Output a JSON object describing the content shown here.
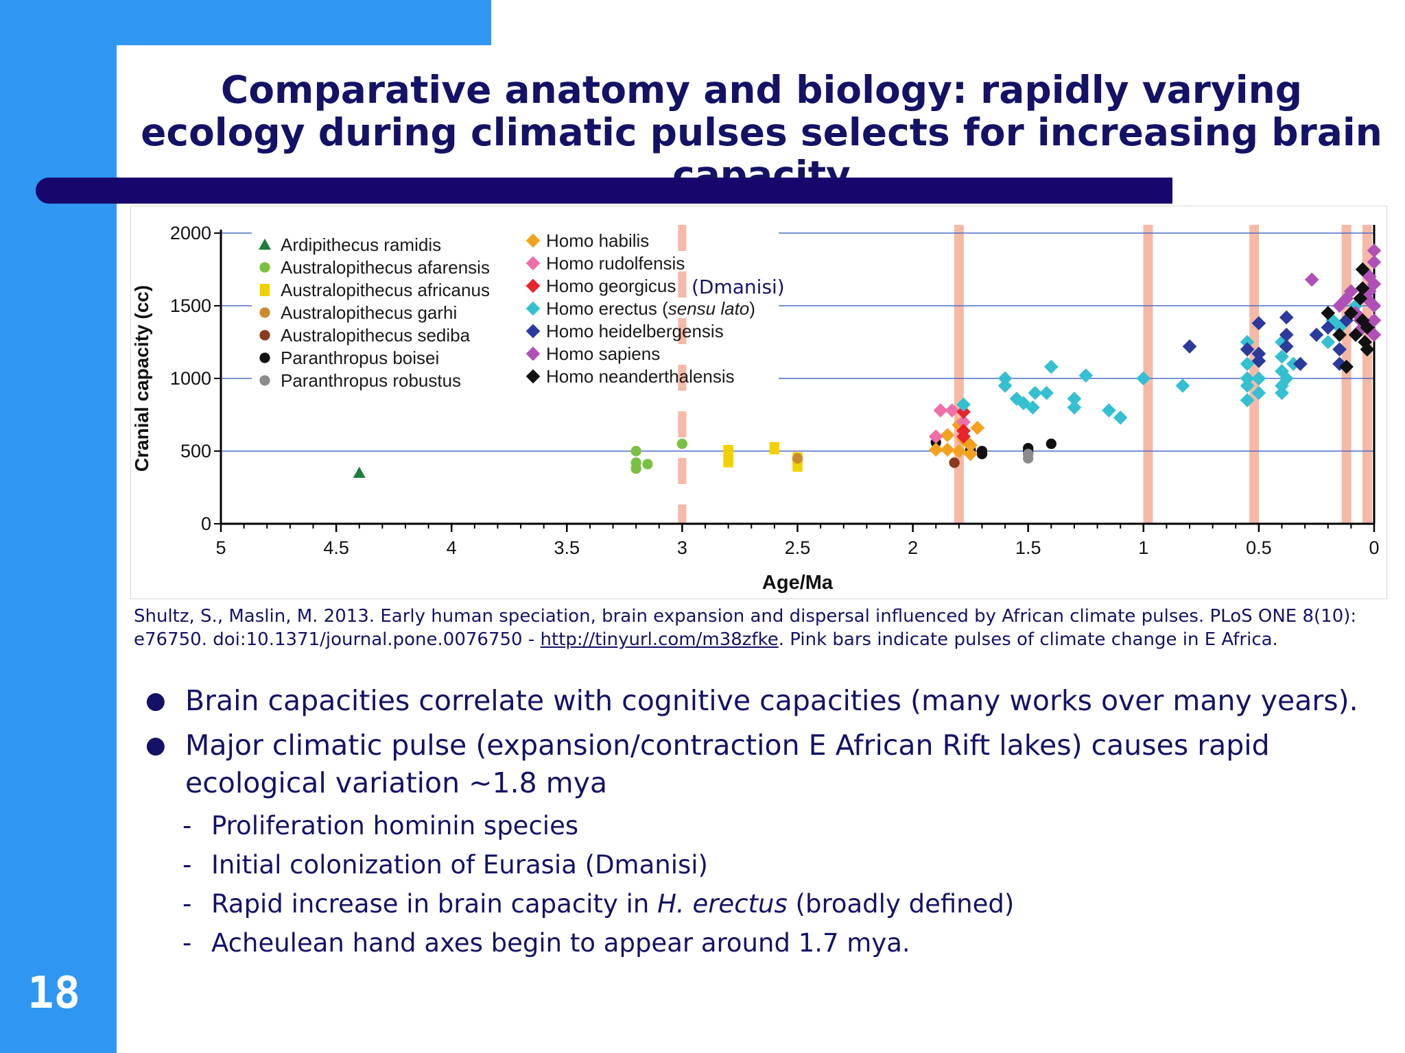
{
  "slide": {
    "title": "Comparative anatomy and biology: rapidly varying ecology during climatic pulses selects for increasing brain capacity",
    "page_number": "18"
  },
  "caption": {
    "text_before_link": "Shultz, S., Maslin, M. 2013. Early human speciation, brain expansion and dispersal influenced by African climate pulses. PLoS ONE 8(10): e76750. doi:10.1371/journal.pone.0076750 - ",
    "link": "http://tinyurl.com/m38zfke",
    "text_after_link": ". Pink bars indicate pulses of climate change in E Africa."
  },
  "bullets": [
    {
      "text": "Brain capacities correlate with cognitive capacities (many works over many years).",
      "sub": []
    },
    {
      "text": "Major climatic pulse (expansion/contraction E African Rift lakes) causes rapid ecological variation ~1.8 mya",
      "sub": [
        {
          "before": "Proliferation hominin species",
          "italic": "",
          "after": ""
        },
        {
          "before": "Initial colonization of Eurasia (Dmanisi)",
          "italic": "",
          "after": ""
        },
        {
          "before": "Rapid increase in brain capacity in ",
          "italic": "H. erectus",
          "after": " (broadly defined)"
        },
        {
          "before": "Acheulean hand axes begin to appear around 1.7 mya.",
          "italic": "",
          "after": ""
        }
      ]
    }
  ],
  "chart_data": {
    "type": "scatter",
    "xlabel": "Age/Ma",
    "ylabel": "Cranial capacity (cc)",
    "xlim": [
      5,
      0
    ],
    "ylim": [
      0,
      2000
    ],
    "x_reversed": true,
    "x_ticks": [
      5,
      4.5,
      4,
      3.5,
      3,
      2.5,
      2,
      1.5,
      1,
      0.5,
      0
    ],
    "y_ticks": [
      0,
      500,
      1000,
      1500,
      2000
    ],
    "grid": "horizontal",
    "legend_position": "top-left",
    "dmanisi_note": "(Dmanisi)",
    "pulse_color": "#f6b9a6",
    "climate_pulses": [
      {
        "age": 3.0,
        "dashed": true
      },
      {
        "age": 1.8,
        "dashed": false
      },
      {
        "age": 0.98,
        "dashed": false
      },
      {
        "age": 0.52,
        "dashed": false
      },
      {
        "age": 0.12,
        "dashed": false
      },
      {
        "age": 0.03,
        "dashed": false
      }
    ],
    "series": [
      {
        "name": "Ardipithecus ramidis",
        "color": "#1e7d3a",
        "marker": "triangle",
        "points": [
          [
            4.4,
            350
          ]
        ]
      },
      {
        "name": "Australopithecus afarensis",
        "color": "#7ac143",
        "marker": "circle",
        "points": [
          [
            3.2,
            500
          ],
          [
            3.2,
            420
          ],
          [
            3.15,
            410
          ],
          [
            3.2,
            380
          ],
          [
            3.0,
            550
          ]
        ]
      },
      {
        "name": "Australopithecus africanus",
        "color": "#f2d100",
        "marker": "square",
        "points": [
          [
            2.8,
            500
          ],
          [
            2.8,
            460
          ],
          [
            2.8,
            430
          ],
          [
            2.6,
            520
          ],
          [
            2.5,
            450
          ],
          [
            2.5,
            420
          ],
          [
            2.5,
            400
          ]
        ]
      },
      {
        "name": "Australopithecus garhi",
        "color": "#cc8a2c",
        "marker": "circle",
        "points": [
          [
            2.5,
            450
          ]
        ]
      },
      {
        "name": "Australopithecus sediba",
        "color": "#8b3a1e",
        "marker": "circle",
        "points": [
          [
            1.82,
            420
          ]
        ]
      },
      {
        "name": "Paranthropus boisei",
        "color": "#111111",
        "marker": "circle",
        "points": [
          [
            1.75,
            510
          ],
          [
            1.7,
            500
          ],
          [
            1.7,
            480
          ],
          [
            1.5,
            520
          ],
          [
            1.5,
            500
          ],
          [
            1.4,
            550
          ],
          [
            1.9,
            560
          ]
        ]
      },
      {
        "name": "Paranthropus robustus",
        "color": "#8c8c8c",
        "marker": "circle",
        "points": [
          [
            1.5,
            450
          ],
          [
            1.5,
            480
          ]
        ]
      },
      {
        "name": "Homo habilis",
        "color": "#f4a21e",
        "marker": "diamond",
        "points": [
          [
            1.9,
            510
          ],
          [
            1.85,
            510
          ],
          [
            1.8,
            500
          ],
          [
            1.75,
            540
          ],
          [
            1.75,
            480
          ],
          [
            1.72,
            660
          ],
          [
            1.85,
            610
          ],
          [
            1.8,
            680
          ],
          [
            1.78,
            580
          ],
          [
            1.9,
            600
          ]
        ]
      },
      {
        "name": "Homo rudolfensis",
        "color": "#ef6fa9",
        "marker": "diamond",
        "points": [
          [
            1.88,
            780
          ],
          [
            1.83,
            780
          ],
          [
            1.9,
            600
          ],
          [
            1.78,
            700
          ]
        ]
      },
      {
        "name": "Homo georgicus",
        "color": "#e8232a",
        "marker": "diamond",
        "points": [
          [
            1.78,
            770
          ],
          [
            1.78,
            640
          ],
          [
            1.78,
            600
          ]
        ]
      },
      {
        "name": "Homo erectus",
        "color": "#34c0d0",
        "marker": "diamond",
        "points": [
          [
            1.78,
            820
          ],
          [
            1.6,
            1000
          ],
          [
            1.6,
            950
          ],
          [
            1.55,
            860
          ],
          [
            1.52,
            830
          ],
          [
            1.47,
            900
          ],
          [
            1.48,
            800
          ],
          [
            1.4,
            1080
          ],
          [
            1.42,
            900
          ],
          [
            1.3,
            860
          ],
          [
            1.3,
            800
          ],
          [
            1.25,
            1020
          ],
          [
            1.15,
            780
          ],
          [
            1.1,
            730
          ],
          [
            1.0,
            1000
          ],
          [
            0.83,
            950
          ],
          [
            0.55,
            1250
          ],
          [
            0.55,
            1100
          ],
          [
            0.55,
            1000
          ],
          [
            0.55,
            950
          ],
          [
            0.55,
            850
          ],
          [
            0.5,
            1000
          ],
          [
            0.5,
            900
          ],
          [
            0.4,
            1250
          ],
          [
            0.4,
            1150
          ],
          [
            0.4,
            1050
          ],
          [
            0.4,
            950
          ],
          [
            0.4,
            900
          ],
          [
            0.38,
            1000
          ],
          [
            0.35,
            1100
          ],
          [
            0.2,
            1250
          ],
          [
            0.18,
            1400
          ],
          [
            0.15,
            1350
          ],
          [
            0.1,
            1450
          ],
          [
            0.08,
            1500
          ]
        ]
      },
      {
        "name": "Homo heidelbergensis",
        "color": "#2b3a9c",
        "marker": "diamond",
        "points": [
          [
            0.8,
            1220
          ],
          [
            0.55,
            1200
          ],
          [
            0.5,
            1380
          ],
          [
            0.5,
            1170
          ],
          [
            0.5,
            1120
          ],
          [
            0.38,
            1420
          ],
          [
            0.38,
            1300
          ],
          [
            0.38,
            1220
          ],
          [
            0.32,
            1100
          ],
          [
            0.25,
            1300
          ],
          [
            0.2,
            1350
          ],
          [
            0.15,
            1200
          ],
          [
            0.15,
            1100
          ],
          [
            0.12,
            1400
          ]
        ]
      },
      {
        "name": "Homo sapiens",
        "color": "#b04fb8",
        "marker": "diamond",
        "points": [
          [
            0.27,
            1680
          ],
          [
            0.15,
            1500
          ],
          [
            0.12,
            1550
          ],
          [
            0.1,
            1600
          ],
          [
            0.08,
            1450
          ],
          [
            0.06,
            1400
          ],
          [
            0.03,
            1550
          ],
          [
            0.02,
            1600
          ],
          [
            0.02,
            1700
          ],
          [
            0.0,
            1650
          ],
          [
            0.0,
            1500
          ],
          [
            0.0,
            1800
          ],
          [
            0.0,
            1880
          ],
          [
            0.0,
            1400
          ],
          [
            0.0,
            1300
          ],
          [
            0.05,
            1350
          ]
        ]
      },
      {
        "name": "Homo neanderthalensis",
        "color": "#111111",
        "marker": "diamond",
        "points": [
          [
            0.2,
            1450
          ],
          [
            0.15,
            1300
          ],
          [
            0.12,
            1080
          ],
          [
            0.1,
            1450
          ],
          [
            0.08,
            1300
          ],
          [
            0.06,
            1550
          ],
          [
            0.05,
            1750
          ],
          [
            0.05,
            1620
          ],
          [
            0.05,
            1400
          ],
          [
            0.04,
            1250
          ],
          [
            0.03,
            1350
          ],
          [
            0.03,
            1200
          ]
        ]
      }
    ],
    "legend_groups": [
      [
        "Ardipithecus ramidis",
        "Australopithecus afarensis",
        "Australopithecus africanus",
        "Australopithecus garhi",
        "Australopithecus sediba",
        "Paranthropus boisei",
        "Paranthropus robustus"
      ],
      [
        {
          "series": "Homo habilis",
          "label": "Homo habilis",
          "italic": "",
          "suffix": ""
        },
        {
          "series": "Homo rudolfensis",
          "label": "Homo rudolfensis",
          "italic": "",
          "suffix": ""
        },
        {
          "series": "Homo georgicus",
          "label": "Homo georgicus",
          "italic": "",
          "suffix": ""
        },
        {
          "series": "Homo erectus",
          "label": "Homo erectus (",
          "italic": "sensu lato",
          "suffix": ")"
        },
        {
          "series": "Homo heidelbergensis",
          "label": "Homo heidelbergensis",
          "italic": "",
          "suffix": ""
        },
        {
          "series": "Homo sapiens",
          "label": "Homo sapiens",
          "italic": "",
          "suffix": ""
        },
        {
          "series": "Homo neanderthalensis",
          "label": "Homo neanderthalensis",
          "italic": "",
          "suffix": ""
        }
      ]
    ]
  }
}
